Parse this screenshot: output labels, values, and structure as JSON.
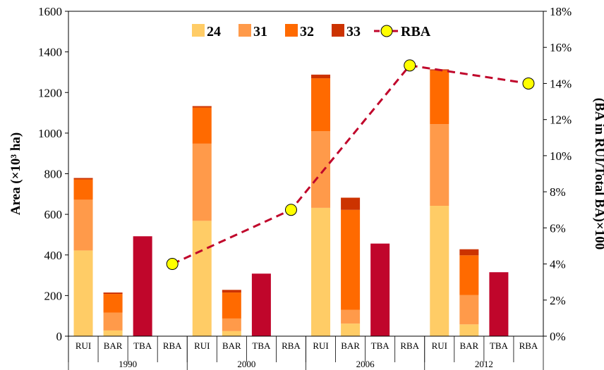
{
  "chart_data": {
    "type": "bar",
    "groups": [
      "1990",
      "2000",
      "2006",
      "2012"
    ],
    "categories": [
      "RUI",
      "BAR",
      "TBA",
      "RBA"
    ],
    "stack_series": [
      {
        "name": "24",
        "color": "#FFCC66",
        "values": {
          "RUI": [
            422,
            568,
            632,
            642
          ],
          "BAR": [
            28,
            25,
            62,
            58
          ]
        }
      },
      {
        "name": "31",
        "color": "#FF9A4A",
        "values": {
          "RUI": [
            250,
            380,
            378,
            402
          ],
          "BAR": [
            88,
            62,
            68,
            145
          ]
        }
      },
      {
        "name": "32",
        "color": "#FF6A00",
        "values": {
          "RUI": [
            100,
            178,
            260,
            265
          ],
          "BAR": [
            92,
            128,
            492,
            195
          ]
        }
      },
      {
        "name": "33",
        "color": "#CC3300",
        "values": {
          "RUI": [
            7,
            7,
            18,
            5
          ],
          "BAR": [
            7,
            13,
            60,
            30
          ]
        }
      }
    ],
    "tba": {
      "name": "TBA",
      "color": "#C0062B",
      "values": [
        492,
        308,
        456,
        315
      ]
    },
    "rba": {
      "name": "RBA",
      "color": "#C0062B",
      "marker_color": "#FFFF00",
      "values": [
        4,
        7,
        15,
        14
      ]
    },
    "y_left": {
      "label": "Area (×10³ ha)",
      "min": 0,
      "max": 1600,
      "ticks": [
        "0",
        "200",
        "400",
        "600",
        "800",
        "1000",
        "1200",
        "1400",
        "1600"
      ]
    },
    "y_right": {
      "label": "(BA in RUI/Total BA)×100",
      "min": 0,
      "max": 18,
      "ticks": [
        "0%",
        "2%",
        "4%",
        "6%",
        "8%",
        "10%",
        "12%",
        "14%",
        "16%",
        "18%"
      ]
    },
    "legend": {
      "position": "top-center",
      "entries": [
        "24",
        "31",
        "32",
        "33",
        "RBA"
      ]
    },
    "grid": false
  }
}
